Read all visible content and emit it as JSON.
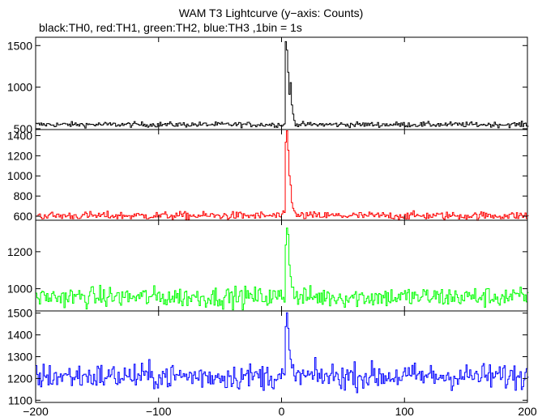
{
  "header": {
    "title": "WAM T3 Lightcurve (y−axis: Counts)",
    "subtitle": "black:TH0, red:TH1, green:TH2, blue:TH3 ,1bin = 1s"
  },
  "chart_data": {
    "type": "line",
    "title": "WAM T3 Lightcurve (y−axis: Counts)",
    "subtitle": "black:TH0, red:TH1, green:TH2, blue:TH3 ,1bin = 1s",
    "xlabel": "",
    "xlim": [
      -200,
      200
    ],
    "x_ticks": [
      -200,
      -100,
      0,
      100,
      200
    ],
    "x_tick_labels": [
      "−200",
      "−100",
      "0",
      "100",
      "200"
    ],
    "bin_size_s": 1,
    "panels": [
      {
        "series_name": "TH0",
        "color": "#000000",
        "ylim": [
          490,
          1600
        ],
        "y_ticks": [
          500,
          1000,
          1500
        ],
        "y_tick_labels": [
          "500",
          "1000",
          "1500"
        ],
        "baseline": 550,
        "noise": 16,
        "peaks": [
          {
            "x": 3,
            "value": 1560
          },
          {
            "x": 4,
            "value": 1440
          },
          {
            "x": 5,
            "value": 1180
          },
          {
            "x": 6,
            "value": 900
          },
          {
            "x": 7,
            "value": 1050
          },
          {
            "x": 8,
            "value": 780
          },
          {
            "x": 9,
            "value": 680
          },
          {
            "x": 10,
            "value": 620
          }
        ]
      },
      {
        "series_name": "TH1",
        "color": "#ff0000",
        "ylim": [
          560,
          1460
        ],
        "y_ticks": [
          600,
          800,
          1000,
          1200,
          1400
        ],
        "y_tick_labels": [
          "600",
          "800",
          "1000",
          "1200",
          "1400"
        ],
        "baseline": 605,
        "noise": 20,
        "peaks": [
          {
            "x": 3,
            "value": 1330
          },
          {
            "x": 4,
            "value": 1440
          },
          {
            "x": 5,
            "value": 1260
          },
          {
            "x": 6,
            "value": 1000
          },
          {
            "x": 7,
            "value": 900
          },
          {
            "x": 8,
            "value": 750
          },
          {
            "x": 9,
            "value": 680
          },
          {
            "x": 10,
            "value": 640
          }
        ]
      },
      {
        "series_name": "TH2",
        "color": "#00ff00",
        "ylim": [
          880,
          1370
        ],
        "y_ticks": [
          1000,
          1200
        ],
        "y_tick_labels": [
          "1000",
          "1200"
        ],
        "baseline": 955,
        "noise": 28,
        "peaks": [
          {
            "x": 3,
            "value": 1250
          },
          {
            "x": 4,
            "value": 1340
          },
          {
            "x": 5,
            "value": 1280
          },
          {
            "x": 6,
            "value": 1150
          },
          {
            "x": 7,
            "value": 1060
          },
          {
            "x": 8,
            "value": 1020
          },
          {
            "x": 9,
            "value": 990
          }
        ]
      },
      {
        "series_name": "TH3",
        "color": "#0000ff",
        "ylim": [
          1090,
          1510
        ],
        "y_ticks": [
          1100,
          1200,
          1300,
          1400,
          1500
        ],
        "y_tick_labels": [
          "1100",
          "1200",
          "1300",
          "1400",
          "1500"
        ],
        "baseline": 1210,
        "noise": 30,
        "peaks": [
          {
            "x": 3,
            "value": 1420
          },
          {
            "x": 4,
            "value": 1500
          },
          {
            "x": 5,
            "value": 1420
          },
          {
            "x": 6,
            "value": 1320
          },
          {
            "x": 7,
            "value": 1270
          },
          {
            "x": 8,
            "value": 1240
          }
        ]
      }
    ]
  }
}
